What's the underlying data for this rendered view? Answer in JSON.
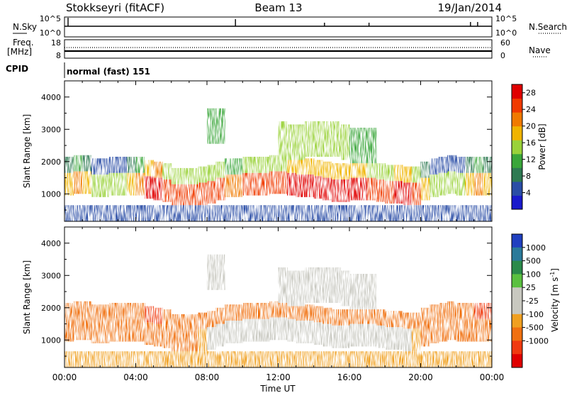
{
  "header": {
    "station": "Stokkseyri (fitACF)",
    "beam": "Beam 13",
    "date": "19/Jan/2014"
  },
  "strips": {
    "nsky_label": "N.Sky",
    "nsky_ticks": [
      "10^5",
      "10^0"
    ],
    "nsearch_label": "N.Search",
    "freq_label_1": "Freq.",
    "freq_label_2": "[MHz]",
    "freq_ticks": [
      "18",
      "8"
    ],
    "nave_label": "Nave",
    "nave_ticks": [
      "60",
      "0"
    ],
    "cpid_label": "CPID",
    "cpid_value": "normal (fast) 151"
  },
  "colors": {
    "power": [
      "#1a1acc",
      "#2a4da6",
      "#2e7a52",
      "#3aa63a",
      "#9ad23a",
      "#f0b400",
      "#f07a00",
      "#f03a00",
      "#e00000"
    ],
    "velocity": [
      "#2040c0",
      "#2a7a9a",
      "#2a8a4a",
      "#5ac040",
      "#c8c8c0",
      "#c8c8c0",
      "#f0a020",
      "#f07010",
      "#f03a10",
      "#e00000"
    ]
  },
  "chart_data": [
    {
      "type": "heatmap",
      "name": "power",
      "ylabel": "Slant Range [km]",
      "colorbar_label": "Power [dB]",
      "colorbar_ticks": [
        "28",
        "24",
        "20",
        "16",
        "12",
        "8",
        "4"
      ],
      "y_ticks": [
        "4000",
        "3000",
        "2000",
        "1000"
      ],
      "ylim": [
        150,
        4500
      ],
      "clim": [
        0,
        30
      ],
      "hours": [
        0,
        0.5,
        1,
        1.5,
        2,
        2.5,
        3,
        3.5,
        4,
        4.5,
        5,
        5.5,
        6,
        6.5,
        7,
        7.5,
        8,
        8.5,
        9,
        9.5,
        10,
        10.5,
        11,
        11.5,
        12,
        12.5,
        13,
        13.5,
        14,
        14.5,
        15,
        15.5,
        16,
        16.5,
        17,
        17.5,
        18,
        18.5,
        19,
        19.5,
        20,
        20.5,
        21,
        21.5,
        22,
        22.5,
        23,
        23.5
      ],
      "main_band_km": [
        1300,
        1350,
        1350,
        1250,
        1250,
        1300,
        1300,
        1300,
        1300,
        1200,
        1150,
        1100,
        950,
        950,
        950,
        1000,
        1050,
        1150,
        1250,
        1250,
        1300,
        1300,
        1300,
        1350,
        1350,
        1300,
        1250,
        1250,
        1200,
        1150,
        1100,
        1100,
        1150,
        1150,
        1150,
        1100,
        1050,
        1050,
        1000,
        1000,
        1150,
        1250,
        1300,
        1350,
        1300,
        1300,
        1300,
        1300
      ],
      "main_band_db": [
        18,
        20,
        18,
        16,
        16,
        14,
        16,
        18,
        20,
        28,
        30,
        24,
        24,
        26,
        26,
        26,
        26,
        24,
        22,
        22,
        24,
        24,
        24,
        26,
        26,
        28,
        28,
        28,
        28,
        28,
        28,
        28,
        28,
        28,
        26,
        26,
        26,
        28,
        28,
        24,
        18,
        16,
        14,
        14,
        16,
        18,
        20,
        18
      ],
      "upper_band_km": [
        0,
        0,
        0,
        0,
        0,
        0,
        0,
        0,
        0,
        0,
        0,
        0,
        0,
        0,
        0,
        0,
        3100,
        3100,
        0,
        0,
        0,
        0,
        0,
        0,
        2700,
        2600,
        2600,
        2700,
        2700,
        2700,
        2700,
        2600,
        2500,
        2500,
        2500,
        0,
        0,
        0,
        0,
        0,
        0,
        0,
        0,
        0,
        0,
        0,
        0,
        0
      ],
      "upper_band_db": [
        0,
        0,
        0,
        0,
        0,
        0,
        0,
        0,
        0,
        0,
        0,
        0,
        0,
        0,
        0,
        0,
        10,
        10,
        0,
        0,
        0,
        0,
        0,
        0,
        14,
        14,
        16,
        16,
        16,
        16,
        14,
        14,
        12,
        12,
        12,
        0,
        0,
        0,
        0,
        0,
        0,
        0,
        0,
        0,
        0,
        0,
        0,
        0
      ]
    },
    {
      "type": "heatmap",
      "name": "velocity",
      "ylabel": "Slant Range [km]",
      "xlabel": "Time UT",
      "colorbar_label": "Velocity [m s",
      "colorbar_label_sup": "-1",
      "colorbar_ticks": [
        "1000",
        "500",
        "100",
        "25",
        "-25",
        "-100",
        "-500",
        "-1000"
      ],
      "y_ticks": [
        "4000",
        "3000",
        "2000",
        "1000"
      ],
      "x_ticks": [
        "00:00",
        "04:00",
        "08:00",
        "12:00",
        "16:00",
        "20:00",
        "00:00"
      ],
      "xlim": [
        0,
        24
      ],
      "ylim": [
        150,
        4500
      ],
      "band_velocity": [
        -300,
        -300,
        -250,
        -200,
        -150,
        -150,
        -200,
        -200,
        -300,
        -400,
        -400,
        -300,
        -200,
        -150,
        -100,
        -50,
        0,
        0,
        0,
        0,
        0,
        0,
        0,
        0,
        0,
        0,
        0,
        0,
        0,
        0,
        0,
        0,
        0,
        0,
        0,
        0,
        0,
        0,
        0,
        -50,
        -100,
        -150,
        -200,
        -250,
        -300,
        -300,
        -350,
        -400
      ]
    }
  ]
}
